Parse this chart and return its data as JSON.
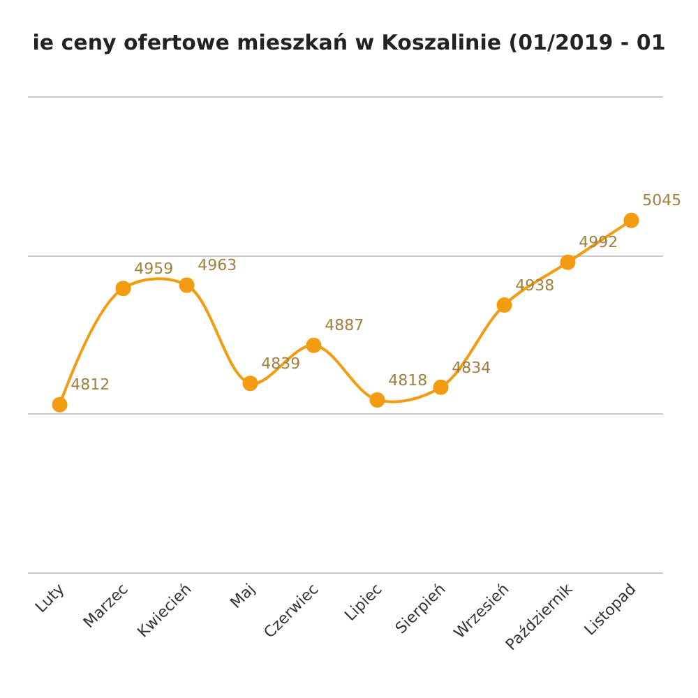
{
  "chart_data": {
    "type": "line",
    "title": "ie ceny ofertowe mieszkań w Koszalinie (01/2019 - 01",
    "categories": [
      "Luty",
      "Marzec",
      "Kwiecień",
      "Maj",
      "Czerwiec",
      "Lipiec",
      "Sierpień",
      "Wrzesień",
      "Październik",
      "Listopad"
    ],
    "series": [
      {
        "color": "#f39c12",
        "values": [
          4812,
          4959,
          4963,
          4839,
          4887,
          4818,
          4834,
          4938,
          4992,
          5045
        ]
      }
    ],
    "ylim": [
      4600,
      5200
    ],
    "yticks": [
      {
        "value": 4800,
        "label": null
      },
      {
        "value": 5000,
        "label": null
      }
    ],
    "tick_labels": "x",
    "grid": "y",
    "marker": "circle",
    "line_style": "solid",
    "data_labels": true,
    "legend": false
  }
}
